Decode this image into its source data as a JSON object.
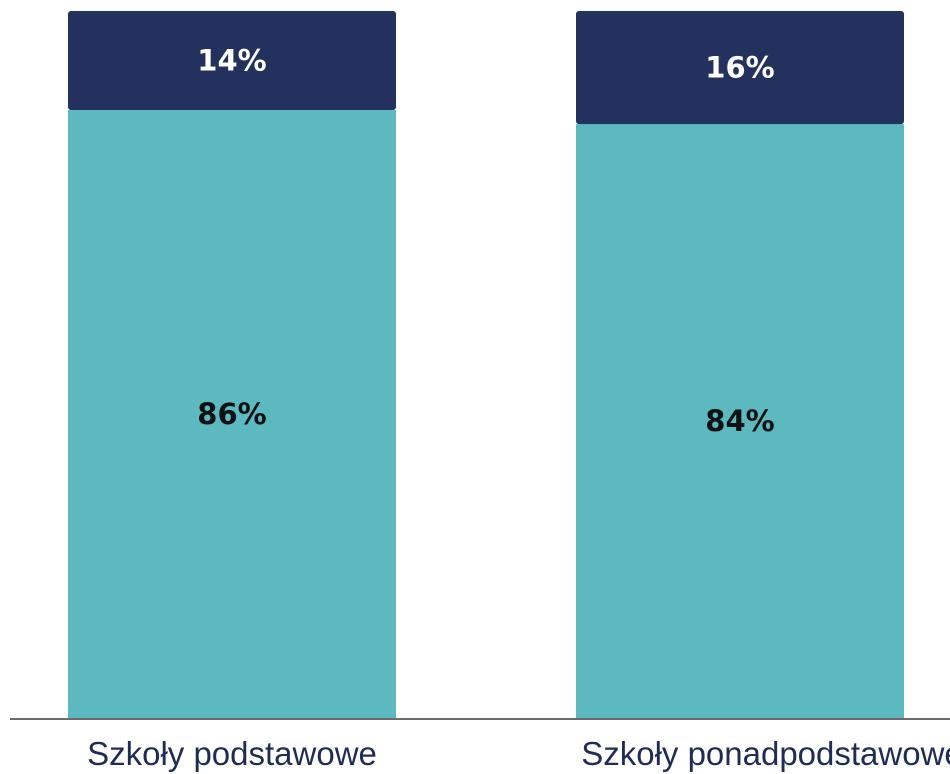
{
  "chart_data": {
    "type": "bar",
    "stacked": true,
    "categories": [
      "Szkoły podstawowe",
      "Szkoły ponadpodstawowe"
    ],
    "series": [
      {
        "values": [
          86,
          84
        ],
        "labels": [
          "86%",
          "84%"
        ],
        "color": "#5bb9bf",
        "label_color": "#111111"
      },
      {
        "values": [
          14,
          16
        ],
        "labels": [
          "14%",
          "16%"
        ],
        "color": "#22315e",
        "label_color": "#ffffff"
      }
    ],
    "ylim": [
      0,
      100
    ],
    "grid": false,
    "legend": "none",
    "axis_color": "#6b6b6b"
  }
}
